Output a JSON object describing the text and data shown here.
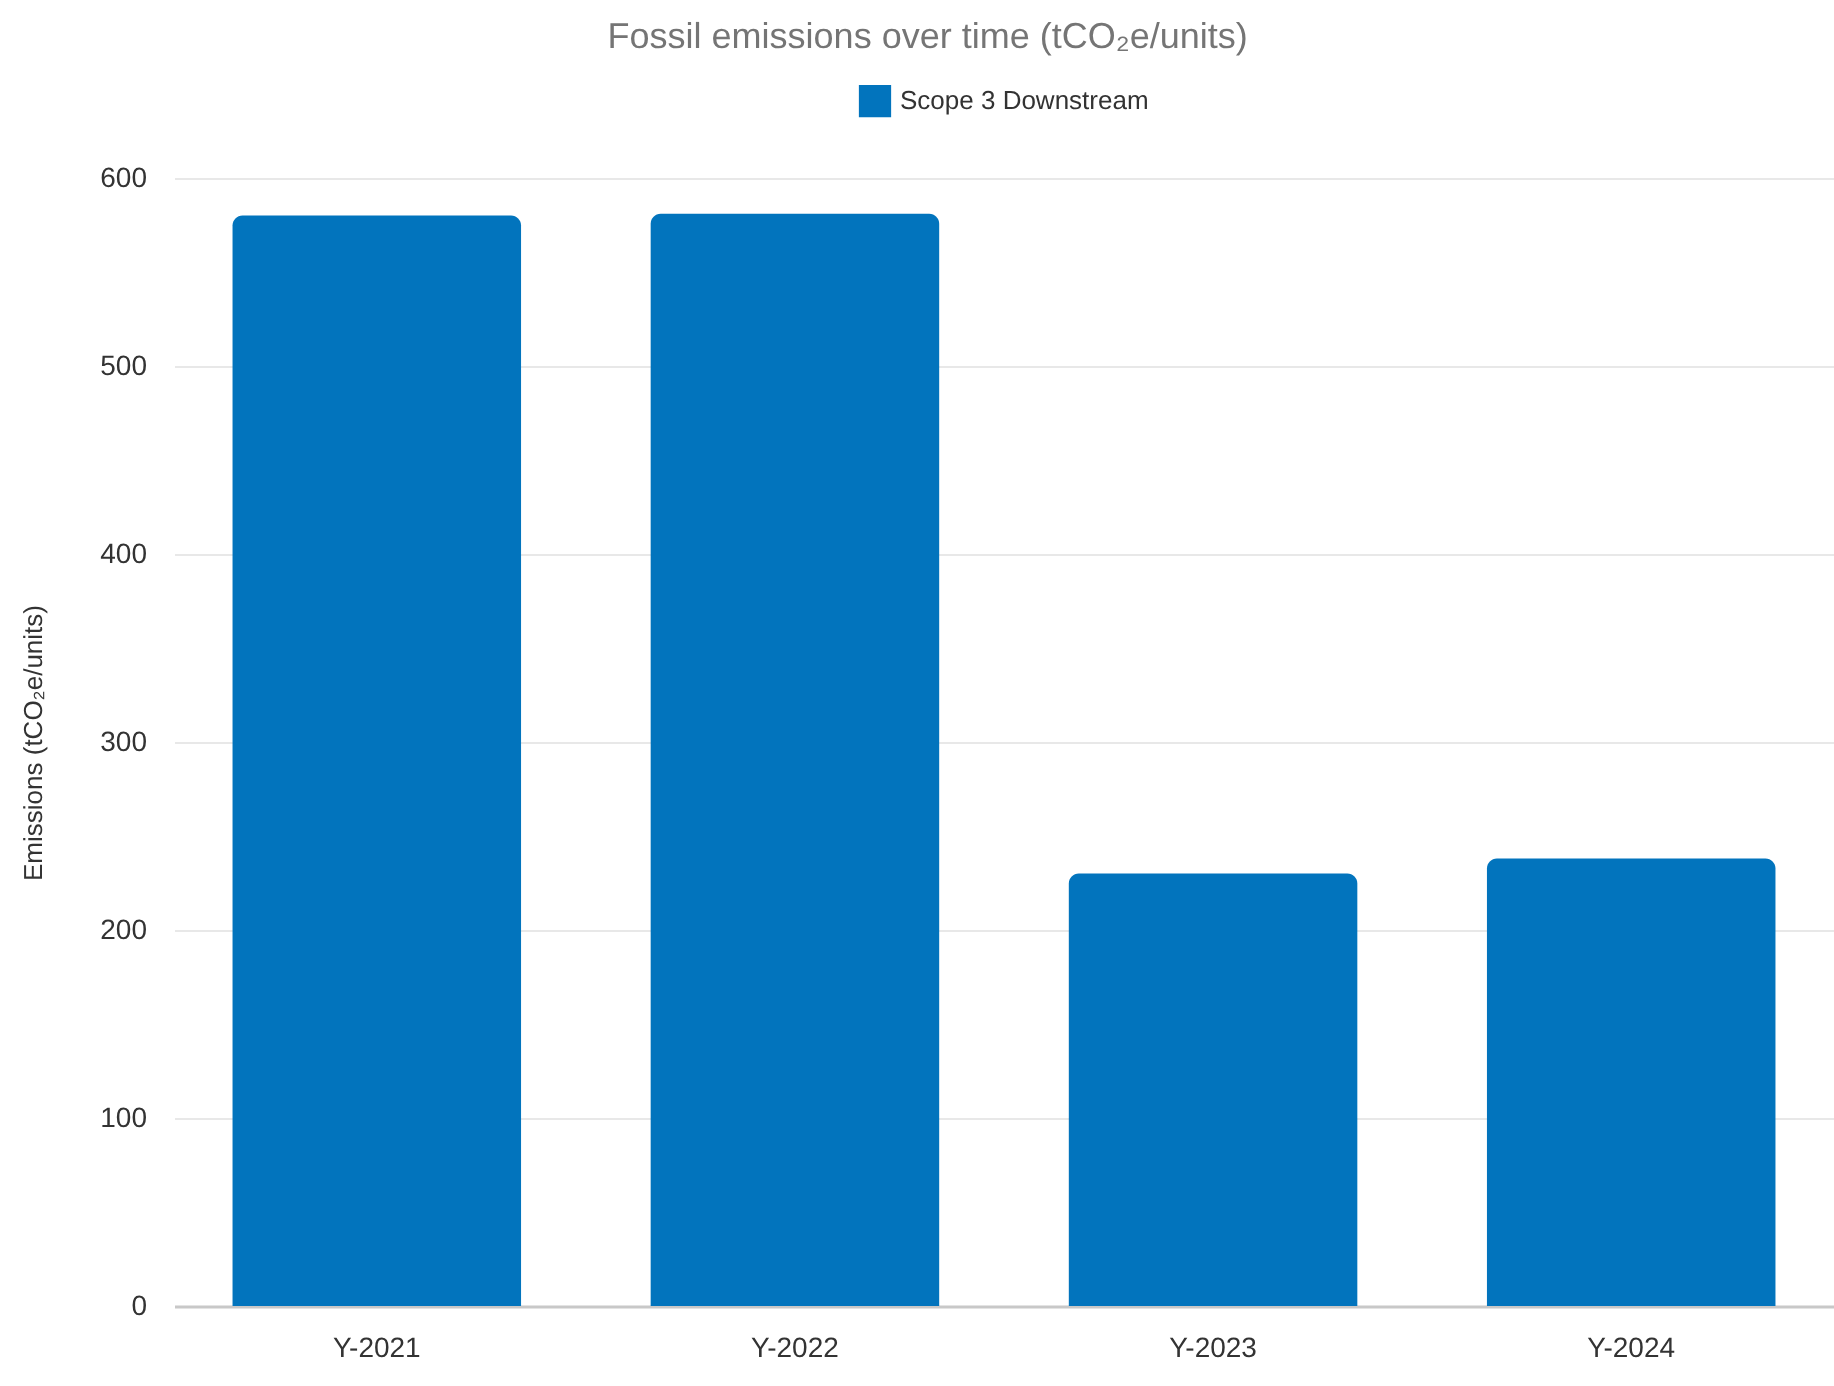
{
  "chart_data": {
    "type": "bar",
    "title": "Fossil emissions over time (tCO₂e/units)",
    "ylabel": "Emissions (tCO₂e/units)",
    "categories": [
      "Y-2021",
      "Y-2022",
      "Y-2023",
      "Y-2024"
    ],
    "series": [
      {
        "name": "Scope 3 Downstream",
        "color": "#0274bd",
        "values": [
          580,
          581,
          230,
          238
        ]
      }
    ],
    "ylim": [
      0,
      600
    ],
    "yticks": [
      0,
      100,
      200,
      300,
      400,
      500,
      600
    ],
    "grid": "y",
    "legend": "top"
  }
}
